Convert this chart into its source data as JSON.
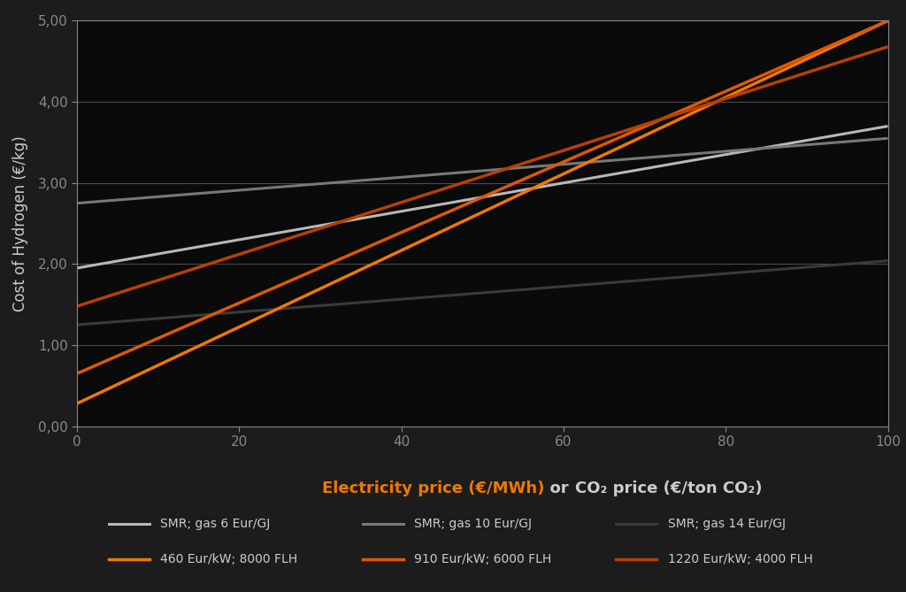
{
  "background_color": "#1c1c1c",
  "plot_bg_color": "#0a0a0a",
  "ylabel": "Cost of Hydrogen (€/kg)",
  "xlabel_part1": "Electricity price (€/MWh)",
  "xlabel_or": "  or  ",
  "xlabel_part2": "CO₂ price (€/ton CO₂)",
  "xmin": 0,
  "xmax": 100,
  "ymin": 0.0,
  "ymax": 5.0,
  "ytick_values": [
    0.0,
    1.0,
    2.0,
    3.0,
    4.0,
    5.0
  ],
  "ytick_labels": [
    "0,00",
    "1,00",
    "2,00",
    "3,00",
    "4,00",
    "5,00"
  ],
  "xtick_values": [
    0,
    20,
    40,
    60,
    80,
    100
  ],
  "smr_lines": [
    {
      "label": "SMR; gas 6 Eur/GJ",
      "intercept": 1.95,
      "slope": 0.0175,
      "color": "#b8b8b8",
      "linewidth": 2.2
    },
    {
      "label": "SMR; gas 10 Eur/GJ",
      "intercept": 2.75,
      "slope": 0.008,
      "color": "#787878",
      "linewidth": 2.2
    },
    {
      "label": "SMR; gas 14 Eur/GJ",
      "intercept": 1.25,
      "slope": 0.0079,
      "color": "#3a3a3a",
      "linewidth": 2.2
    }
  ],
  "elec_lines": [
    {
      "label": "460 Eur/kW; 8000 FLH",
      "intercept": 0.28,
      "slope": 0.0472,
      "color": "#f07800",
      "linewidth": 2.5
    },
    {
      "label": "910 Eur/kW; 6000 FLH",
      "intercept": 0.65,
      "slope": 0.0435,
      "color": "#e05800",
      "linewidth": 2.5
    },
    {
      "label": "1220 Eur/kW; 4000 FLH",
      "intercept": 1.48,
      "slope": 0.032,
      "color": "#b84000",
      "linewidth": 2.5
    }
  ],
  "grid_color": "#4a4a4a",
  "tick_color": "#cccccc",
  "axis_color": "#888888",
  "legend_text_color": "#cccccc",
  "xlabel_orange_color": "#f07800",
  "xlabel_white_color": "#cccccc"
}
